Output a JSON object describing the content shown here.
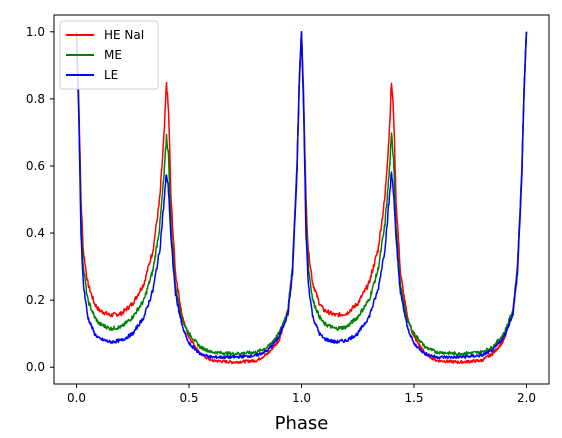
{
  "chart_data": {
    "type": "line",
    "title": "",
    "xlabel": "Phase",
    "ylabel": "",
    "xlim": [
      -0.1,
      2.1
    ],
    "ylim": [
      -0.05,
      1.05
    ],
    "xticks": [
      0.0,
      0.5,
      1.0,
      1.5,
      2.0
    ],
    "xtick_labels": [
      "0.0",
      "0.5",
      "1.0",
      "1.5",
      "2.0"
    ],
    "yticks": [
      0.0,
      0.2,
      0.4,
      0.6,
      0.8,
      1.0
    ],
    "ytick_labels": [
      "0.0",
      "0.2",
      "0.4",
      "0.6",
      "0.8",
      "1.0"
    ],
    "grid": false,
    "legend_position": "top-left",
    "series": [
      {
        "name": "HE NaI",
        "color": "#ff0000",
        "points": [
          [
            0.0,
            1.0
          ],
          [
            0.01,
            0.8
          ],
          [
            0.02,
            0.5
          ],
          [
            0.03,
            0.35
          ],
          [
            0.05,
            0.25
          ],
          [
            0.08,
            0.19
          ],
          [
            0.1,
            0.17
          ],
          [
            0.15,
            0.155
          ],
          [
            0.2,
            0.16
          ],
          [
            0.25,
            0.19
          ],
          [
            0.3,
            0.25
          ],
          [
            0.34,
            0.35
          ],
          [
            0.37,
            0.5
          ],
          [
            0.39,
            0.7
          ],
          [
            0.4,
            0.85
          ],
          [
            0.41,
            0.75
          ],
          [
            0.42,
            0.5
          ],
          [
            0.44,
            0.28
          ],
          [
            0.47,
            0.15
          ],
          [
            0.5,
            0.09
          ],
          [
            0.55,
            0.04
          ],
          [
            0.6,
            0.02
          ],
          [
            0.7,
            0.015
          ],
          [
            0.8,
            0.02
          ],
          [
            0.85,
            0.04
          ],
          [
            0.9,
            0.08
          ],
          [
            0.94,
            0.17
          ],
          [
            0.96,
            0.3
          ],
          [
            0.98,
            0.6
          ],
          [
            0.99,
            0.85
          ],
          [
            1.0,
            1.0
          ],
          [
            1.01,
            0.8
          ],
          [
            1.02,
            0.5
          ],
          [
            1.03,
            0.35
          ],
          [
            1.05,
            0.25
          ],
          [
            1.08,
            0.19
          ],
          [
            1.1,
            0.17
          ],
          [
            1.15,
            0.155
          ],
          [
            1.2,
            0.16
          ],
          [
            1.25,
            0.19
          ],
          [
            1.3,
            0.25
          ],
          [
            1.34,
            0.35
          ],
          [
            1.37,
            0.5
          ],
          [
            1.39,
            0.7
          ],
          [
            1.4,
            0.85
          ],
          [
            1.41,
            0.75
          ],
          [
            1.42,
            0.5
          ],
          [
            1.44,
            0.28
          ],
          [
            1.47,
            0.15
          ],
          [
            1.5,
            0.09
          ],
          [
            1.55,
            0.04
          ],
          [
            1.6,
            0.02
          ],
          [
            1.7,
            0.015
          ],
          [
            1.8,
            0.02
          ],
          [
            1.85,
            0.04
          ],
          [
            1.9,
            0.08
          ],
          [
            1.94,
            0.17
          ],
          [
            1.96,
            0.3
          ],
          [
            1.98,
            0.6
          ],
          [
            1.99,
            0.85
          ],
          [
            2.0,
            1.0
          ]
        ]
      },
      {
        "name": "ME",
        "color": "#008000",
        "points": [
          [
            0.0,
            1.0
          ],
          [
            0.01,
            0.78
          ],
          [
            0.02,
            0.45
          ],
          [
            0.03,
            0.3
          ],
          [
            0.05,
            0.2
          ],
          [
            0.08,
            0.15
          ],
          [
            0.1,
            0.13
          ],
          [
            0.15,
            0.115
          ],
          [
            0.2,
            0.12
          ],
          [
            0.25,
            0.15
          ],
          [
            0.3,
            0.2
          ],
          [
            0.34,
            0.29
          ],
          [
            0.37,
            0.42
          ],
          [
            0.39,
            0.58
          ],
          [
            0.4,
            0.69
          ],
          [
            0.41,
            0.62
          ],
          [
            0.42,
            0.42
          ],
          [
            0.44,
            0.24
          ],
          [
            0.47,
            0.14
          ],
          [
            0.5,
            0.1
          ],
          [
            0.55,
            0.06
          ],
          [
            0.6,
            0.045
          ],
          [
            0.7,
            0.04
          ],
          [
            0.8,
            0.045
          ],
          [
            0.85,
            0.06
          ],
          [
            0.9,
            0.1
          ],
          [
            0.94,
            0.17
          ],
          [
            0.96,
            0.3
          ],
          [
            0.98,
            0.6
          ],
          [
            0.99,
            0.85
          ],
          [
            1.0,
            1.0
          ],
          [
            1.01,
            0.78
          ],
          [
            1.02,
            0.45
          ],
          [
            1.03,
            0.3
          ],
          [
            1.05,
            0.2
          ],
          [
            1.08,
            0.15
          ],
          [
            1.1,
            0.13
          ],
          [
            1.15,
            0.115
          ],
          [
            1.2,
            0.12
          ],
          [
            1.25,
            0.15
          ],
          [
            1.3,
            0.2
          ],
          [
            1.34,
            0.29
          ],
          [
            1.37,
            0.42
          ],
          [
            1.39,
            0.58
          ],
          [
            1.4,
            0.69
          ],
          [
            1.41,
            0.62
          ],
          [
            1.42,
            0.42
          ],
          [
            1.44,
            0.24
          ],
          [
            1.47,
            0.14
          ],
          [
            1.5,
            0.1
          ],
          [
            1.55,
            0.06
          ],
          [
            1.6,
            0.045
          ],
          [
            1.7,
            0.04
          ],
          [
            1.8,
            0.045
          ],
          [
            1.85,
            0.06
          ],
          [
            1.9,
            0.1
          ],
          [
            1.94,
            0.17
          ],
          [
            1.96,
            0.3
          ],
          [
            1.98,
            0.6
          ],
          [
            1.99,
            0.85
          ],
          [
            2.0,
            1.0
          ]
        ]
      },
      {
        "name": "LE",
        "color": "#0000ff",
        "points": [
          [
            0.0,
            1.0
          ],
          [
            0.01,
            0.75
          ],
          [
            0.02,
            0.4
          ],
          [
            0.03,
            0.25
          ],
          [
            0.05,
            0.15
          ],
          [
            0.08,
            0.1
          ],
          [
            0.1,
            0.085
          ],
          [
            0.15,
            0.075
          ],
          [
            0.2,
            0.08
          ],
          [
            0.25,
            0.1
          ],
          [
            0.3,
            0.15
          ],
          [
            0.34,
            0.23
          ],
          [
            0.37,
            0.35
          ],
          [
            0.39,
            0.5
          ],
          [
            0.4,
            0.58
          ],
          [
            0.41,
            0.52
          ],
          [
            0.42,
            0.38
          ],
          [
            0.44,
            0.22
          ],
          [
            0.47,
            0.12
          ],
          [
            0.5,
            0.07
          ],
          [
            0.55,
            0.04
          ],
          [
            0.6,
            0.03
          ],
          [
            0.7,
            0.03
          ],
          [
            0.8,
            0.035
          ],
          [
            0.85,
            0.05
          ],
          [
            0.9,
            0.09
          ],
          [
            0.94,
            0.16
          ],
          [
            0.96,
            0.28
          ],
          [
            0.98,
            0.58
          ],
          [
            0.99,
            0.85
          ],
          [
            1.0,
            1.0
          ],
          [
            1.01,
            0.75
          ],
          [
            1.02,
            0.4
          ],
          [
            1.03,
            0.25
          ],
          [
            1.05,
            0.15
          ],
          [
            1.08,
            0.1
          ],
          [
            1.1,
            0.085
          ],
          [
            1.15,
            0.075
          ],
          [
            1.2,
            0.08
          ],
          [
            1.25,
            0.1
          ],
          [
            1.3,
            0.15
          ],
          [
            1.34,
            0.23
          ],
          [
            1.37,
            0.35
          ],
          [
            1.39,
            0.5
          ],
          [
            1.4,
            0.58
          ],
          [
            1.41,
            0.52
          ],
          [
            1.42,
            0.38
          ],
          [
            1.44,
            0.22
          ],
          [
            1.47,
            0.12
          ],
          [
            1.5,
            0.07
          ],
          [
            1.55,
            0.04
          ],
          [
            1.6,
            0.03
          ],
          [
            1.7,
            0.03
          ],
          [
            1.8,
            0.035
          ],
          [
            1.85,
            0.05
          ],
          [
            1.9,
            0.09
          ],
          [
            1.94,
            0.16
          ],
          [
            1.96,
            0.28
          ],
          [
            1.98,
            0.58
          ],
          [
            1.99,
            0.85
          ],
          [
            2.0,
            1.0
          ]
        ]
      }
    ]
  }
}
